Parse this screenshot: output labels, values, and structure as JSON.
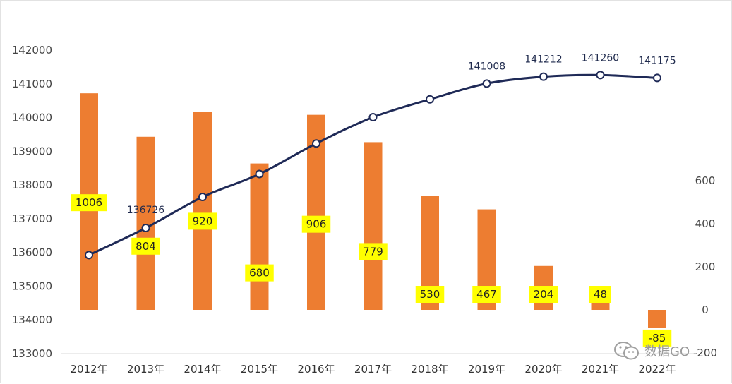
{
  "chart_data": {
    "type": "bar+line",
    "categories": [
      "2012年",
      "2013年",
      "2014年",
      "2015年",
      "2016年",
      "2017年",
      "2018年",
      "2019年",
      "2020年",
      "2021年",
      "2022年"
    ],
    "series": [
      {
        "type": "line",
        "axis": "left",
        "values": [
          135922,
          136726,
          137646,
          138326,
          139232,
          140011,
          140541,
          141008,
          141212,
          141260,
          141175
        ],
        "labels": [
          "",
          "136726",
          "",
          "",
          "",
          "",
          "",
          "141008",
          "141212",
          "141260",
          "141175"
        ]
      },
      {
        "type": "bar",
        "axis": "right",
        "values": [
          1006,
          804,
          920,
          680,
          906,
          779,
          530,
          467,
          204,
          48,
          -85
        ]
      }
    ],
    "left_axis": {
      "ylim": [
        133000,
        142000
      ],
      "ticks": [
        "133000",
        "134000",
        "135000",
        "136000",
        "137000",
        "138000",
        "139000",
        "140000",
        "141000",
        "142000"
      ]
    },
    "right_axis": {
      "ylim": [
        -200,
        1100
      ],
      "ticks": [
        "-200",
        "0",
        "200",
        "400",
        "600"
      ]
    },
    "colors": {
      "bar": "#ED7D31",
      "line": "#1F2A57",
      "label_bg": "#FFFF00"
    },
    "grid": false,
    "legend": "none"
  },
  "watermark": {
    "text": "数据GO",
    "icon": "wechat-icon"
  }
}
